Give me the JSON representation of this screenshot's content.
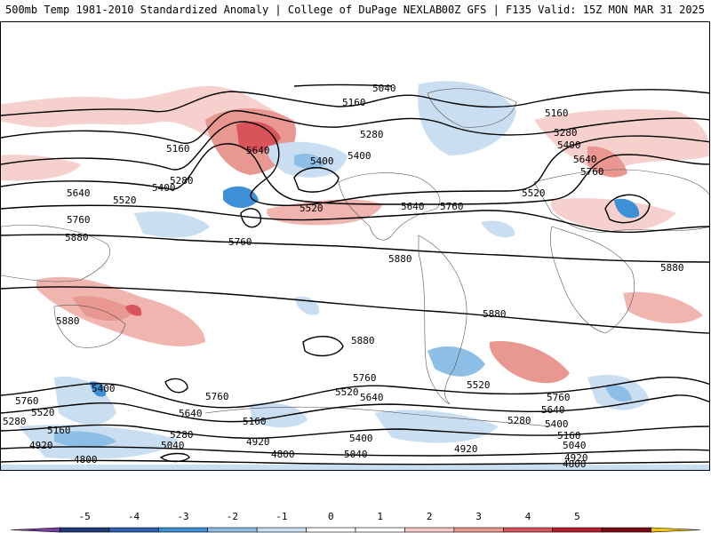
{
  "header": {
    "title_left": "500mb Temp 1981-2010 Standardized Anomaly | College of DuPage NEXLAB",
    "title_right": "00Z GFS | F135 Valid: 15Z MON MAR 31 2025"
  },
  "contour_labels": [
    "5040",
    "5160",
    "5280",
    "5400",
    "5520",
    "5640",
    "5760",
    "5880",
    "4920",
    "4800"
  ],
  "colorbar": {
    "ticks": [
      "-5",
      "-4",
      "-3",
      "-2",
      "-1",
      "0",
      "1",
      "2",
      "3",
      "4",
      "5"
    ],
    "colors": [
      "#7b3fa1",
      "#1e3a78",
      "#2f5fb0",
      "#3d8fd6",
      "#8dbfe6",
      "#c9def1",
      "#ffffff",
      "#ffffff",
      "#f5c9c6",
      "#eb9a96",
      "#d9545a",
      "#b81d2a",
      "#7c0a14",
      "#f1c40f"
    ]
  }
}
